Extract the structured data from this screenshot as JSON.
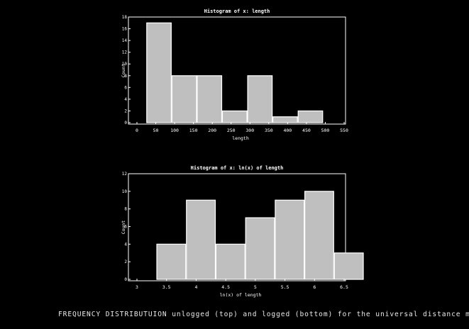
{
  "colors": {
    "background": "#000000",
    "axis": "#ffffff",
    "bar_fill": "#bfbfbf",
    "bar_edge": "#ffffff",
    "text": "#ffffff"
  },
  "caption": "FREQUENCY DISTRIBUTUION unlogged (top) and logged (bottom) for the universal distance minim",
  "chart_data": [
    {
      "type": "bar",
      "title": "Histogram of x: length",
      "xlabel": "length",
      "ylabel": "Count",
      "xlim": [
        0,
        550
      ],
      "ylim": [
        0,
        18
      ],
      "xticks": [
        0,
        50,
        100,
        150,
        200,
        250,
        300,
        350,
        400,
        450,
        500,
        550
      ],
      "xtick_labels": [
        "0",
        "50",
        "100",
        "150",
        "200",
        "250",
        "300",
        "350",
        "400",
        "450",
        "500",
        "550"
      ],
      "yticks": [
        0,
        2,
        4,
        6,
        8,
        10,
        12,
        14,
        16,
        18
      ],
      "ytick_labels": [
        "0",
        "2",
        "4",
        "6",
        "8",
        "10",
        "12",
        "14",
        "16",
        "18"
      ],
      "bins": [
        {
          "start": 25,
          "end": 92,
          "count": 17
        },
        {
          "start": 92,
          "end": 159,
          "count": 8
        },
        {
          "start": 159,
          "end": 226,
          "count": 8
        },
        {
          "start": 226,
          "end": 293,
          "count": 2
        },
        {
          "start": 293,
          "end": 360,
          "count": 8
        },
        {
          "start": 360,
          "end": 427,
          "count": 1
        },
        {
          "start": 427,
          "end": 494,
          "count": 2
        }
      ],
      "grid": false
    },
    {
      "type": "bar",
      "title": "Histogram of x: ln(x) of length",
      "xlabel": "ln(x) of length",
      "ylabel": "Count",
      "xlim": [
        3,
        6.5
      ],
      "ylim": [
        0,
        12
      ],
      "xticks": [
        3,
        3.5,
        4,
        4.5,
        5,
        5.5,
        6,
        6.5
      ],
      "xtick_labels": [
        "3",
        "3.5",
        "4",
        "4.5",
        "5",
        "5.5",
        "6",
        "6.5"
      ],
      "yticks": [
        0,
        2,
        4,
        6,
        8,
        10,
        12
      ],
      "ytick_labels": [
        "0",
        "2",
        "4",
        "6",
        "8",
        "10",
        "12"
      ],
      "bins": [
        {
          "start": 3.33,
          "end": 3.83,
          "count": 4
        },
        {
          "start": 3.83,
          "end": 4.33,
          "count": 9
        },
        {
          "start": 4.33,
          "end": 4.83,
          "count": 4
        },
        {
          "start": 4.83,
          "end": 5.33,
          "count": 7
        },
        {
          "start": 5.33,
          "end": 5.83,
          "count": 9
        },
        {
          "start": 5.83,
          "end": 6.33,
          "count": 10
        },
        {
          "start": 6.33,
          "end": 6.83,
          "count": 3
        }
      ],
      "grid": false
    }
  ]
}
